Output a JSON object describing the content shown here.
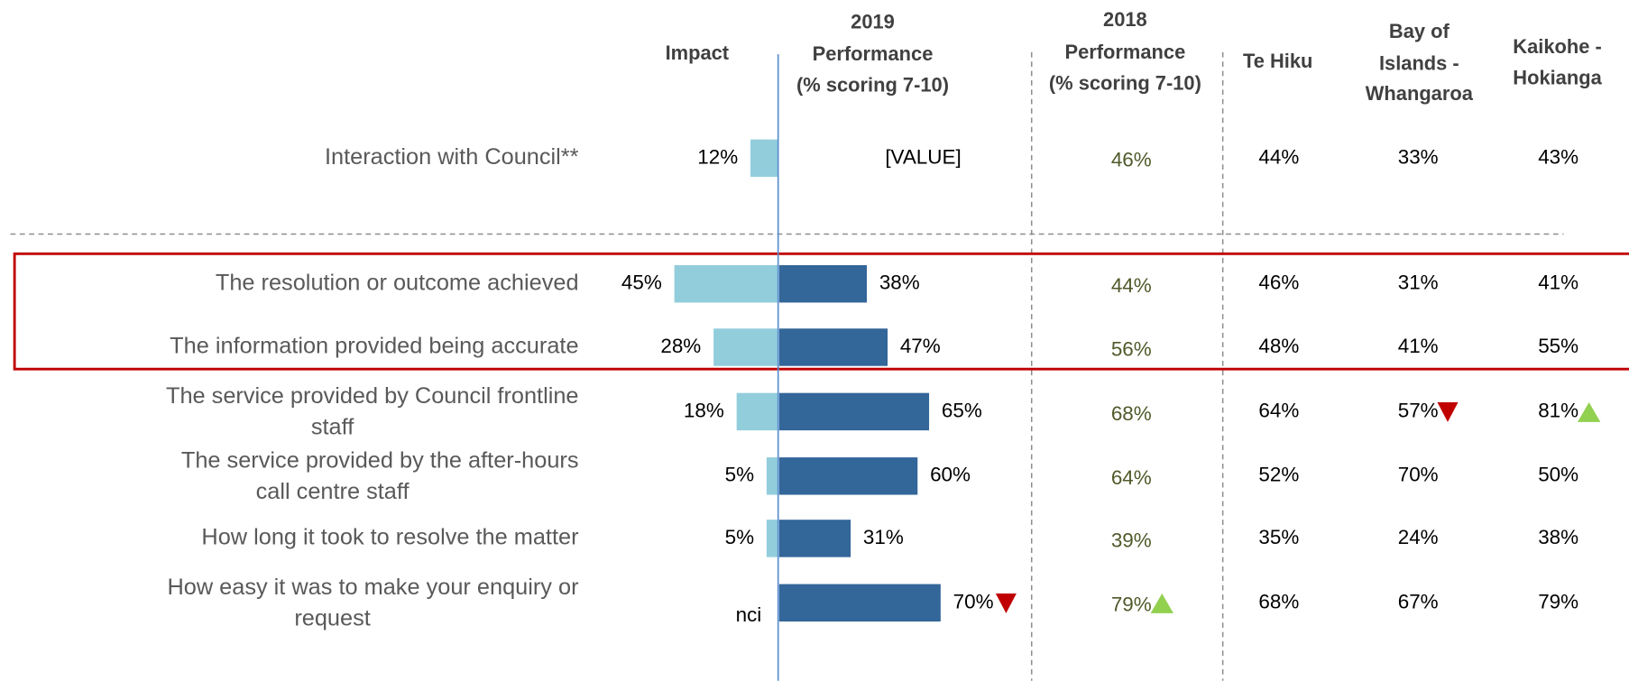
{
  "chart_data": {
    "type": "driver_table",
    "categories": [
      [
        "Interaction with Council**"
      ],
      [
        "The resolution or outcome achieved"
      ],
      [
        "The information provided being accurate"
      ],
      [
        "The service provided by Council frontline",
        "staff"
      ],
      [
        "The service provided by the after-hours",
        "call centre staff"
      ],
      [
        "How long it took to resolve the matter"
      ],
      [
        "How easy it was to make your enquiry or",
        "request"
      ]
    ],
    "impact": {
      "name": [
        "Impact"
      ],
      "color": "#92cddc",
      "values": [
        12,
        45,
        28,
        18,
        5,
        5,
        null
      ],
      "value_labels": [
        "12%",
        "45%",
        "28%",
        "18%",
        "5%",
        "5%",
        "nci"
      ]
    },
    "performance": {
      "name": [
        "2019",
        "Performance",
        "(% scoring 7-10)"
      ],
      "color": "#336699",
      "values": [
        null,
        38,
        47,
        65,
        60,
        31,
        70
      ],
      "value_labels": [
        "[VALUE]",
        "38%",
        "47%",
        "65%",
        "60%",
        "31%",
        "70%"
      ],
      "flags": [
        null,
        null,
        null,
        null,
        null,
        null,
        "down"
      ]
    },
    "columns": [
      {
        "name": [
          "2018",
          "Performance",
          "(% scoring 7-10)"
        ],
        "values": [
          "46%",
          "44%",
          "56%",
          "68%",
          "64%",
          "39%",
          "79%"
        ],
        "flags": [
          null,
          null,
          null,
          null,
          null,
          null,
          "up"
        ]
      },
      {
        "name": [
          "Te Hiku"
        ],
        "values": [
          "44%",
          "46%",
          "48%",
          "64%",
          "52%",
          "35%",
          "68%"
        ],
        "flags": [
          null,
          null,
          null,
          null,
          null,
          null,
          null
        ]
      },
      {
        "name": [
          "Bay of",
          "Islands -",
          "Whangaroa"
        ],
        "values": [
          "33%",
          "31%",
          "41%",
          "57%",
          "70%",
          "24%",
          "67%"
        ],
        "flags": [
          null,
          null,
          null,
          "down",
          null,
          null,
          null
        ]
      },
      {
        "name": [
          "Kaikohe -",
          "Hokianga"
        ],
        "values": [
          "43%",
          "41%",
          "55%",
          "81%",
          "50%",
          "38%",
          "79%"
        ],
        "flags": [
          null,
          null,
          null,
          "up",
          null,
          null,
          null
        ]
      }
    ],
    "flag_colors": {
      "up": "#92d050",
      "down": "#c00000"
    }
  }
}
